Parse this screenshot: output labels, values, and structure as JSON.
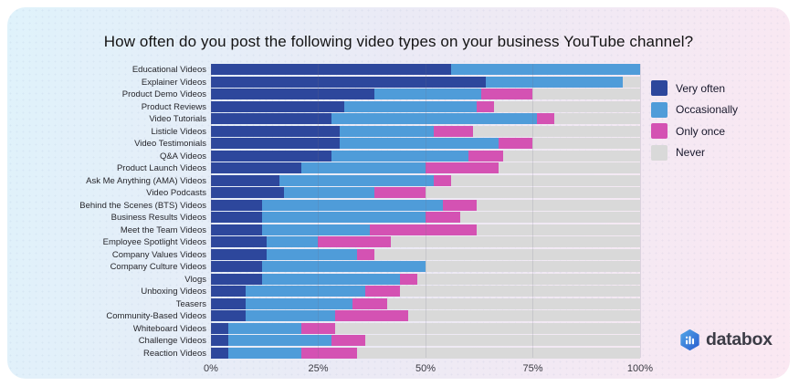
{
  "title": "How often do you post the following video types on your business YouTube channel?",
  "colors": {
    "very_often": "#2d479c",
    "occasionally": "#4f9cd9",
    "only_once": "#d452b3",
    "never": "#d9d9d9",
    "card_gradient_left": "#dff2fb",
    "card_gradient_right": "#fbe8f2",
    "logo_blue": "#3574d8"
  },
  "legend": {
    "position": "right",
    "items": [
      {
        "label": "Very often",
        "color": "#2d479c"
      },
      {
        "label": "Occasionally",
        "color": "#4f9cd9"
      },
      {
        "label": "Only once",
        "color": "#d452b3"
      },
      {
        "label": "Never",
        "color": "#d9d9d9"
      }
    ]
  },
  "x_axis": {
    "ticks": [
      "0%",
      "25%",
      "50%",
      "75%",
      "100%"
    ],
    "min": 0,
    "max": 100
  },
  "logo": {
    "text": "databox",
    "icon": "databox-bar-chart-hexagon"
  },
  "chart_data": {
    "type": "bar",
    "variant": "horizontal-stacked",
    "title": "How often do you post the following video types on your business YouTube channel?",
    "xlabel": "",
    "ylabel": "",
    "xlim": [
      0,
      100
    ],
    "unit": "percent",
    "grid": true,
    "legend_position": "top-right",
    "categories": [
      "Educational Videos",
      "Explainer Videos",
      "Product Demo Videos",
      "Product Reviews",
      "Video Tutorials",
      "Listicle Videos",
      "Video Testimonials",
      "Q&A Videos",
      "Product Launch Videos",
      "Ask Me Anything (AMA) Videos",
      "Video Podcasts",
      "Behind the Scenes (BTS) Videos",
      "Business Results Videos",
      "Meet the Team Videos",
      "Employee Spotlight Videos",
      "Company Values Videos",
      "Company Culture Videos",
      "Vlogs",
      "Unboxing Videos",
      "Teasers",
      "Community-Based Videos",
      "Whiteboard Videos",
      "Challenge Videos",
      "Reaction Videos"
    ],
    "series": [
      {
        "name": "Very often",
        "color": "#2d479c",
        "values": [
          56,
          64,
          38,
          31,
          28,
          30,
          30,
          28,
          21,
          16,
          17,
          12,
          12,
          12,
          13,
          13,
          12,
          12,
          8,
          8,
          8,
          4,
          4,
          4
        ]
      },
      {
        "name": "Occasionally",
        "color": "#4f9cd9",
        "values": [
          44,
          32,
          25,
          31,
          48,
          22,
          37,
          32,
          29,
          36,
          21,
          42,
          38,
          25,
          12,
          21,
          38,
          32,
          28,
          25,
          21,
          17,
          24,
          17
        ]
      },
      {
        "name": "Only once",
        "color": "#d452b3",
        "values": [
          0,
          0,
          12,
          4,
          4,
          9,
          8,
          8,
          17,
          4,
          12,
          8,
          8,
          25,
          17,
          4,
          0,
          4,
          8,
          8,
          17,
          8,
          8,
          13
        ]
      },
      {
        "name": "Never",
        "color": "#d9d9d9",
        "values": [
          0,
          4,
          25,
          34,
          20,
          39,
          25,
          32,
          33,
          44,
          50,
          38,
          42,
          38,
          58,
          62,
          50,
          52,
          56,
          59,
          54,
          71,
          64,
          66
        ]
      }
    ]
  }
}
